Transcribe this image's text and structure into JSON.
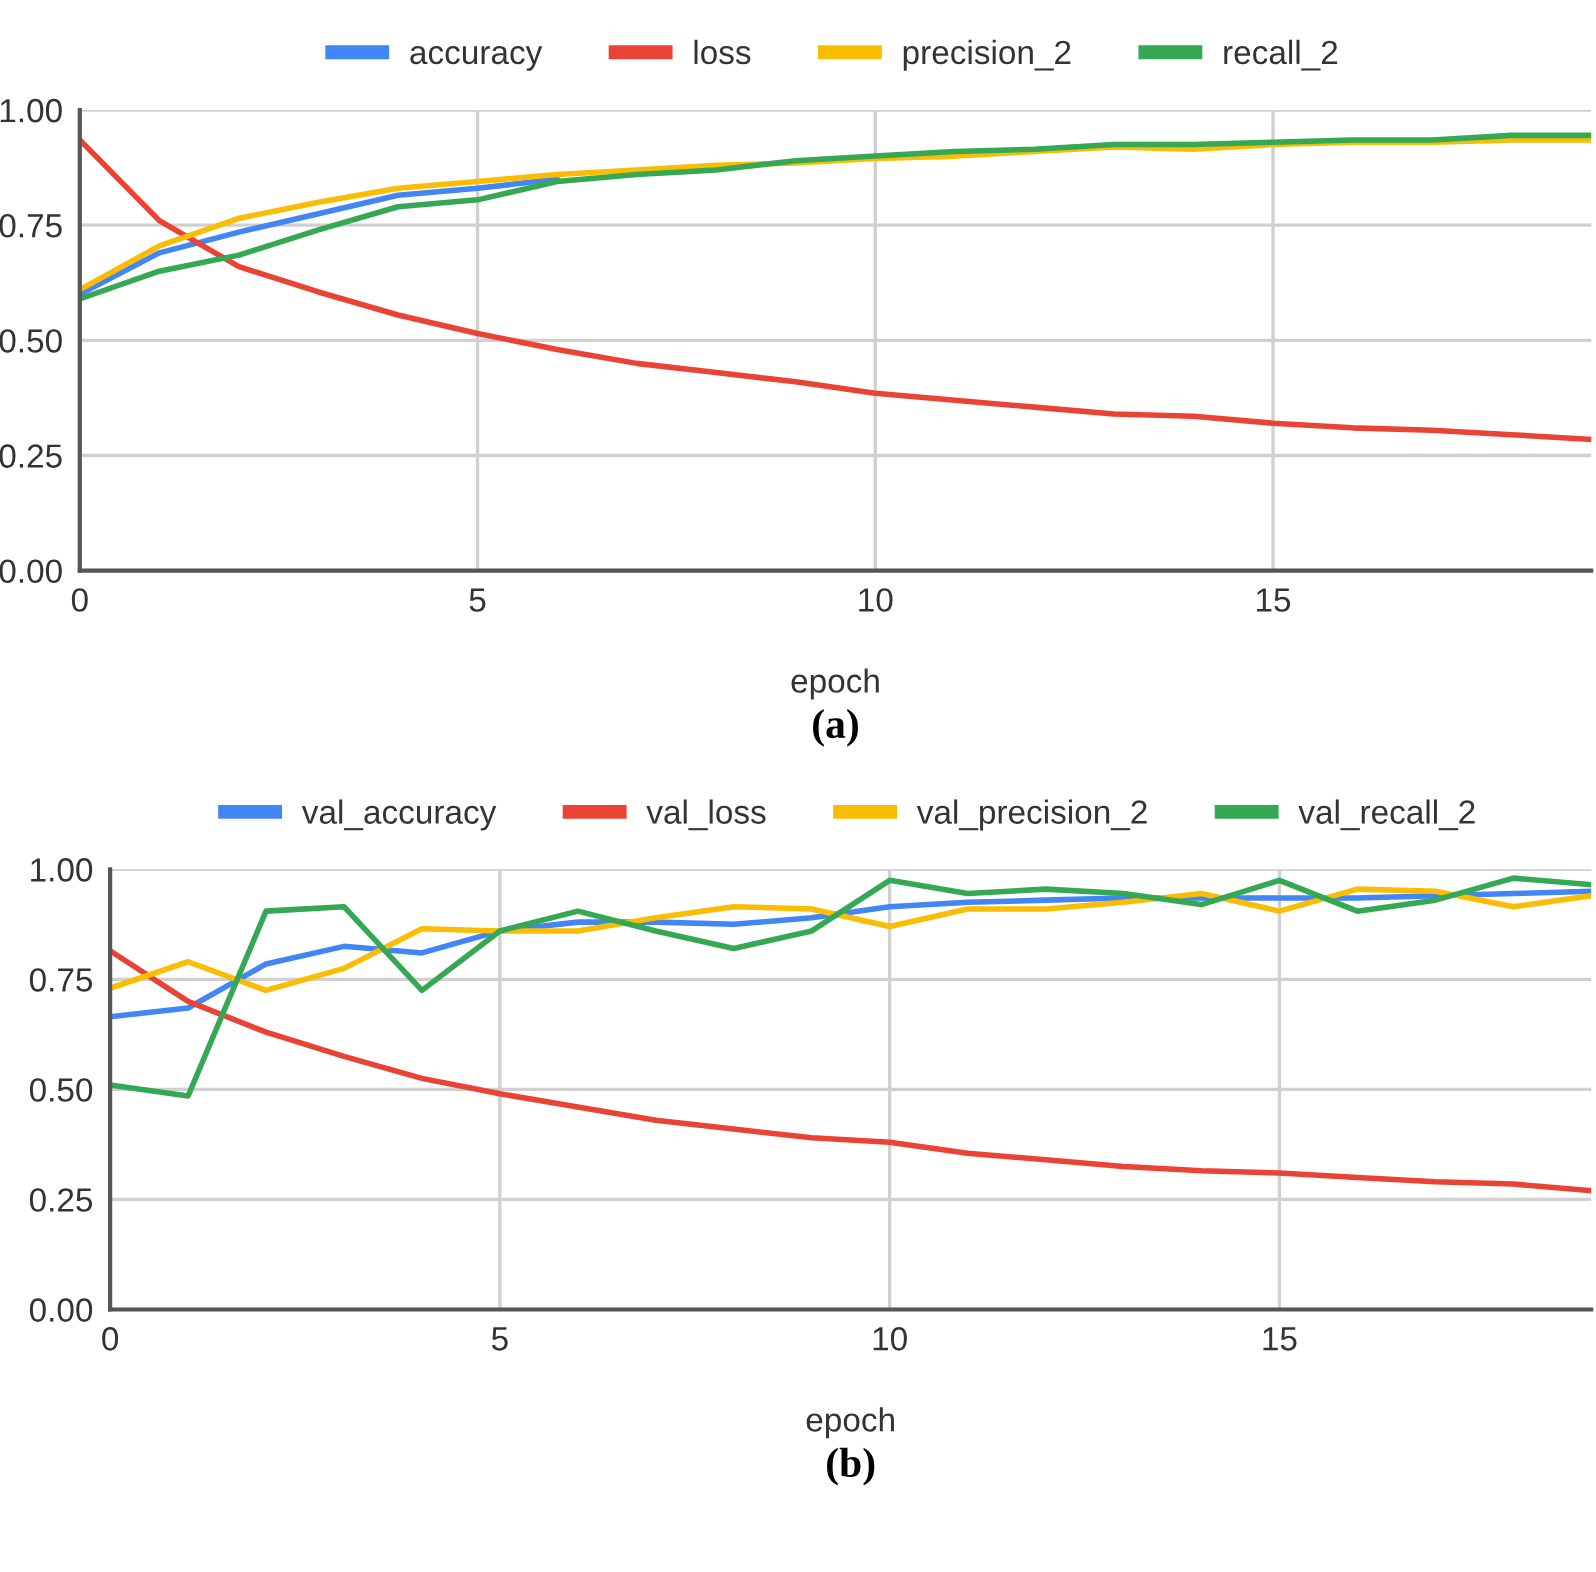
{
  "chart_data": [
    {
      "type": "line",
      "xlabel": "epoch",
      "xlim": [
        0,
        19
      ],
      "xticks": [
        0,
        5,
        10,
        15
      ],
      "ylim": [
        0,
        1
      ],
      "yticks": [
        {
          "value": 0,
          "label": "0.00"
        },
        {
          "value": 0.25,
          "label": "0.25"
        },
        {
          "value": 0.5,
          "label": "0.50"
        },
        {
          "value": 0.75,
          "label": "0.75"
        },
        {
          "value": 1,
          "label": "1.00"
        }
      ],
      "grid": true,
      "legend": "top",
      "annotations": [
        "(a)"
      ],
      "x": [
        0,
        1,
        2,
        3,
        4,
        5,
        6,
        7,
        8,
        9,
        10,
        11,
        12,
        13,
        14,
        15,
        16,
        17,
        18,
        19
      ],
      "series": [
        {
          "name": "accuracy",
          "color": "#4285f4",
          "values": [
            0.6,
            0.69,
            0.735,
            0.775,
            0.815,
            0.83,
            0.85,
            null,
            null,
            null,
            null,
            null,
            null,
            null,
            null,
            null,
            null,
            null,
            null,
            null
          ]
        },
        {
          "name": "loss",
          "color": "#ea4335",
          "values": [
            0.935,
            0.76,
            0.66,
            0.605,
            0.555,
            0.515,
            0.48,
            0.45,
            0.43,
            0.41,
            0.385,
            0.37,
            0.355,
            0.34,
            0.335,
            0.32,
            0.31,
            0.305,
            0.295,
            0.285
          ]
        },
        {
          "name": "precision_2",
          "color": "#fbbc04",
          "values": [
            0.61,
            0.705,
            0.765,
            0.8,
            0.83,
            0.845,
            0.86,
            0.87,
            0.88,
            0.885,
            0.895,
            0.9,
            0.91,
            0.92,
            0.915,
            0.925,
            0.93,
            0.93,
            0.935,
            0.935
          ]
        },
        {
          "name": "recall_2",
          "color": "#34a853",
          "values": [
            0.59,
            0.65,
            0.685,
            0.74,
            0.79,
            0.805,
            0.845,
            0.86,
            0.87,
            0.89,
            0.9,
            0.91,
            0.915,
            0.925,
            0.925,
            0.93,
            0.935,
            0.935,
            0.945,
            0.945
          ]
        }
      ]
    },
    {
      "type": "line",
      "xlabel": "epoch",
      "xlim": [
        0,
        19
      ],
      "xticks": [
        0,
        5,
        10,
        15
      ],
      "ylim": [
        0,
        1
      ],
      "yticks": [
        {
          "value": 0,
          "label": "0.00"
        },
        {
          "value": 0.25,
          "label": "0.25"
        },
        {
          "value": 0.5,
          "label": "0.50"
        },
        {
          "value": 0.75,
          "label": "0.75"
        },
        {
          "value": 1,
          "label": "1.00"
        }
      ],
      "grid": true,
      "legend": "top",
      "annotations": [
        "(b)"
      ],
      "x": [
        0,
        1,
        2,
        3,
        4,
        5,
        6,
        7,
        8,
        9,
        10,
        11,
        12,
        13,
        14,
        15,
        16,
        17,
        18,
        19
      ],
      "series": [
        {
          "name": "val_accuracy",
          "color": "#4285f4",
          "values": [
            0.665,
            0.685,
            0.785,
            0.825,
            0.81,
            0.86,
            0.88,
            0.88,
            0.875,
            0.89,
            0.915,
            0.925,
            0.93,
            0.935,
            0.935,
            0.935,
            0.935,
            0.94,
            0.945,
            0.95
          ]
        },
        {
          "name": "val_loss",
          "color": "#ea4335",
          "values": [
            0.815,
            0.7,
            0.63,
            0.575,
            0.525,
            0.49,
            0.46,
            0.43,
            0.41,
            0.39,
            0.38,
            0.355,
            0.34,
            0.325,
            0.315,
            0.31,
            0.3,
            0.29,
            0.285,
            0.27
          ]
        },
        {
          "name": "val_precision_2",
          "color": "#fbbc04",
          "values": [
            0.73,
            0.79,
            0.725,
            0.775,
            0.865,
            0.86,
            0.86,
            0.89,
            0.915,
            0.91,
            0.87,
            0.91,
            0.91,
            0.925,
            0.945,
            0.905,
            0.955,
            0.95,
            0.915,
            0.94
          ]
        },
        {
          "name": "val_recall_2",
          "color": "#34a853",
          "values": [
            0.51,
            0.485,
            0.905,
            0.915,
            0.725,
            0.86,
            0.905,
            0.86,
            0.82,
            0.86,
            0.975,
            0.945,
            0.955,
            0.945,
            0.92,
            0.975,
            0.905,
            0.93,
            0.98,
            0.965
          ]
        }
      ]
    }
  ]
}
